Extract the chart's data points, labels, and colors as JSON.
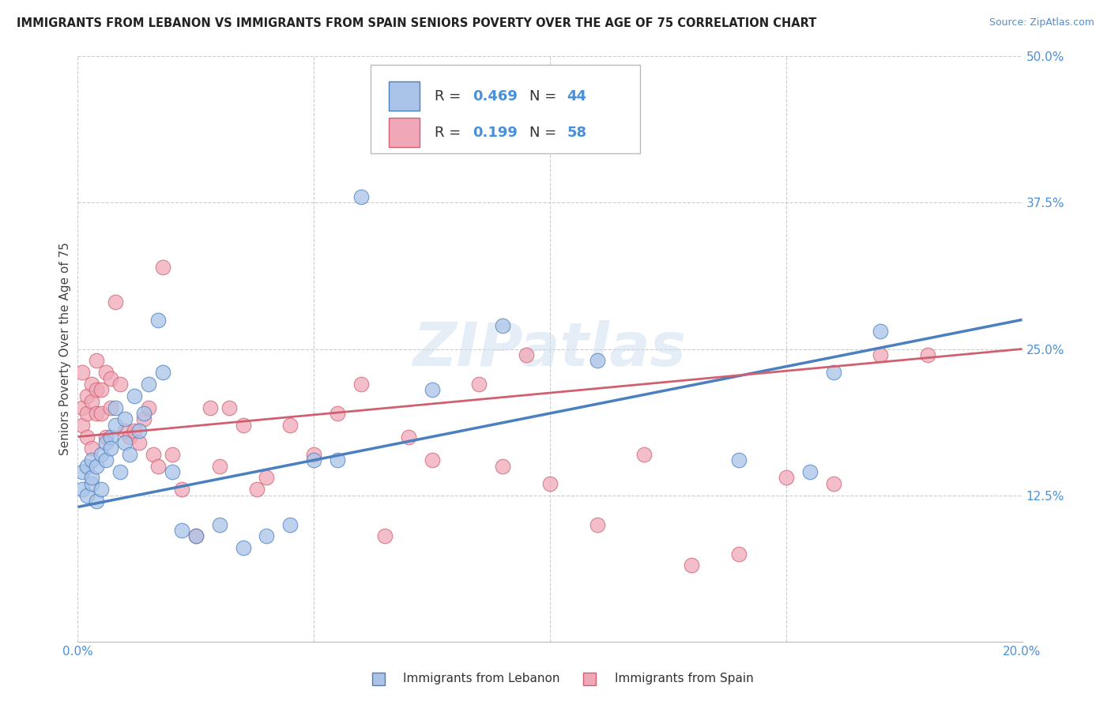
{
  "title": "IMMIGRANTS FROM LEBANON VS IMMIGRANTS FROM SPAIN SENIORS POVERTY OVER THE AGE OF 75 CORRELATION CHART",
  "source": "Source: ZipAtlas.com",
  "ylabel": "Seniors Poverty Over the Age of 75",
  "xlabel_lebanon": "Immigrants from Lebanon",
  "xlabel_spain": "Immigrants from Spain",
  "xlim": [
    0.0,
    0.2
  ],
  "ylim": [
    0.0,
    0.5
  ],
  "x_ticks": [
    0.0,
    0.05,
    0.1,
    0.15,
    0.2
  ],
  "y_ticks": [
    0.0,
    0.125,
    0.25,
    0.375,
    0.5
  ],
  "R_lebanon": 0.469,
  "N_lebanon": 44,
  "R_spain": 0.199,
  "N_spain": 58,
  "color_lebanon": "#aac4e8",
  "color_spain": "#f0a8b8",
  "line_color_lebanon": "#4a7fc0",
  "line_color_spain": "#d06070",
  "watermark": "ZIPatlas",
  "lebanon_x": [
    0.001,
    0.001,
    0.002,
    0.002,
    0.003,
    0.003,
    0.003,
    0.004,
    0.004,
    0.005,
    0.005,
    0.006,
    0.006,
    0.007,
    0.007,
    0.008,
    0.008,
    0.009,
    0.01,
    0.01,
    0.011,
    0.012,
    0.013,
    0.014,
    0.015,
    0.017,
    0.018,
    0.02,
    0.022,
    0.025,
    0.03,
    0.035,
    0.04,
    0.045,
    0.05,
    0.055,
    0.06,
    0.075,
    0.09,
    0.11,
    0.14,
    0.155,
    0.16,
    0.17
  ],
  "lebanon_y": [
    0.145,
    0.13,
    0.125,
    0.15,
    0.135,
    0.155,
    0.14,
    0.12,
    0.15,
    0.13,
    0.16,
    0.17,
    0.155,
    0.175,
    0.165,
    0.185,
    0.2,
    0.145,
    0.17,
    0.19,
    0.16,
    0.21,
    0.18,
    0.195,
    0.22,
    0.275,
    0.23,
    0.145,
    0.095,
    0.09,
    0.1,
    0.08,
    0.09,
    0.1,
    0.155,
    0.155,
    0.38,
    0.215,
    0.27,
    0.24,
    0.155,
    0.145,
    0.23,
    0.265
  ],
  "spain_x": [
    0.001,
    0.001,
    0.001,
    0.002,
    0.002,
    0.002,
    0.003,
    0.003,
    0.003,
    0.004,
    0.004,
    0.004,
    0.005,
    0.005,
    0.006,
    0.006,
    0.007,
    0.007,
    0.008,
    0.009,
    0.01,
    0.011,
    0.012,
    0.013,
    0.014,
    0.015,
    0.016,
    0.017,
    0.018,
    0.02,
    0.022,
    0.025,
    0.028,
    0.03,
    0.032,
    0.035,
    0.038,
    0.04,
    0.045,
    0.05,
    0.055,
    0.06,
    0.065,
    0.07,
    0.075,
    0.08,
    0.085,
    0.09,
    0.095,
    0.1,
    0.11,
    0.12,
    0.13,
    0.14,
    0.15,
    0.16,
    0.17,
    0.18
  ],
  "spain_y": [
    0.2,
    0.23,
    0.185,
    0.175,
    0.21,
    0.195,
    0.165,
    0.205,
    0.22,
    0.195,
    0.215,
    0.24,
    0.195,
    0.215,
    0.23,
    0.175,
    0.2,
    0.225,
    0.29,
    0.22,
    0.18,
    0.175,
    0.18,
    0.17,
    0.19,
    0.2,
    0.16,
    0.15,
    0.32,
    0.16,
    0.13,
    0.09,
    0.2,
    0.15,
    0.2,
    0.185,
    0.13,
    0.14,
    0.185,
    0.16,
    0.195,
    0.22,
    0.09,
    0.175,
    0.155,
    0.44,
    0.22,
    0.15,
    0.245,
    0.135,
    0.1,
    0.16,
    0.065,
    0.075,
    0.14,
    0.135,
    0.245,
    0.245
  ],
  "leb_line_x": [
    0.0,
    0.2
  ],
  "leb_line_y": [
    0.115,
    0.275
  ],
  "spa_line_x": [
    0.0,
    0.2
  ],
  "spa_line_y": [
    0.175,
    0.25
  ]
}
